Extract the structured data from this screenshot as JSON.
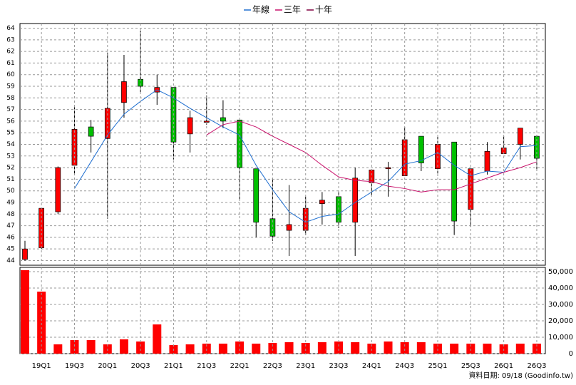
{
  "chart_data": [
    {
      "type": "candlestick",
      "open": [
        44.1,
        45.1,
        48.2,
        52.2,
        55.5,
        54.5,
        57.6,
        59.6,
        58.5,
        58.9,
        54.9,
        55.9,
        56.3,
        56.1,
        51.9,
        47.6,
        46.6,
        46.6,
        48.9,
        49.5,
        47.3,
        50.7,
        51.9,
        51.3,
        54.7,
        51.9,
        54.2,
        48.4,
        51.7,
        53.2,
        54.0,
        54.7
      ],
      "high": [
        45.7,
        48.5,
        52.1,
        57.2,
        56.1,
        61.9,
        61.7,
        63.8,
        60.0,
        58.9,
        56.9,
        58.2,
        57.8,
        56.1,
        51.9,
        51.1,
        50.5,
        49.5,
        49.9,
        50.0,
        52.0,
        51.8,
        52.5,
        55.5,
        54.7,
        54.8,
        54.2,
        51.9,
        54.2,
        54.7,
        55.4,
        54.8
      ],
      "low": [
        44.0,
        45.0,
        48.0,
        51.4,
        53.3,
        47.6,
        56.3,
        58.5,
        57.4,
        52.7,
        53.3,
        55.7,
        55.4,
        49.2,
        46.0,
        45.7,
        44.4,
        46.2,
        47.1,
        46.8,
        44.4,
        49.6,
        49.5,
        51.3,
        51.7,
        51.3,
        46.2,
        46.9,
        51.4,
        53.2,
        52.7,
        51.7
      ],
      "close": [
        45.0,
        48.5,
        52.0,
        55.3,
        54.7,
        57.1,
        59.4,
        59.0,
        58.9,
        54.2,
        56.3,
        56.0,
        56.0,
        52.0,
        47.3,
        46.1,
        47.1,
        48.5,
        49.2,
        47.3,
        51.1,
        51.8,
        52.0,
        54.4,
        52.4,
        54.0,
        47.4,
        51.9,
        53.4,
        53.7,
        55.4,
        52.8
      ],
      "up_color": "#ff0000",
      "down_color": "#00c000",
      "series": [
        {
          "name": "年線",
          "color": "#1f6fd0",
          "values": [
            null,
            null,
            null,
            50.2,
            52.5,
            54.8,
            56.6,
            57.7,
            58.7,
            58.0,
            57.1,
            56.3,
            55.5,
            54.8,
            52.2,
            50.1,
            48.2,
            47.3,
            47.8,
            48.0,
            49.0,
            49.9,
            50.8,
            52.3,
            52.6,
            53.3,
            52.2,
            51.3,
            51.7,
            51.6,
            53.8,
            53.9
          ]
        },
        {
          "name": "三年",
          "color": "#c8106a",
          "values": [
            null,
            null,
            null,
            null,
            null,
            null,
            null,
            null,
            null,
            null,
            null,
            54.8,
            55.7,
            56.0,
            55.5,
            54.7,
            54.0,
            53.3,
            52.2,
            51.2,
            50.9,
            50.8,
            50.4,
            50.2,
            49.9,
            50.1,
            50.1,
            50.6,
            51.1,
            51.6,
            52.0,
            52.5
          ]
        },
        {
          "name": "十年",
          "color": "#800040",
          "values": [
            null,
            null,
            null,
            null,
            null,
            null,
            null,
            null,
            null,
            null,
            null,
            null,
            null,
            null,
            null,
            null,
            null,
            null,
            null,
            null,
            null,
            null,
            null,
            null,
            null,
            null,
            null,
            null,
            null,
            null,
            null,
            null
          ]
        }
      ],
      "ylim": [
        43.6,
        64.4
      ],
      "yticks": [
        44,
        45,
        46,
        47,
        48,
        49,
        50,
        51,
        52,
        53,
        54,
        55,
        56,
        57,
        58,
        59,
        60,
        61,
        62,
        63,
        64
      ],
      "grid": true
    },
    {
      "type": "bar",
      "categories": [
        null,
        "19Q1",
        null,
        "19Q3",
        null,
        "20Q1",
        null,
        "20Q3",
        null,
        "21Q1",
        null,
        "21Q3",
        null,
        "22Q1",
        null,
        "22Q3",
        null,
        "23Q1",
        null,
        "23Q3",
        null,
        "24Q1",
        null,
        "24Q3",
        null,
        "25Q1",
        null,
        "25Q3",
        null,
        "26Q1",
        null,
        "26Q3"
      ],
      "values": [
        50900,
        37800,
        5650,
        8260,
        8260,
        5650,
        8700,
        7400,
        17800,
        5200,
        5650,
        6100,
        6100,
        7400,
        6100,
        6500,
        7000,
        6500,
        7000,
        7400,
        7000,
        6100,
        7400,
        7000,
        7000,
        6100,
        6100,
        6100,
        6100,
        5650,
        6100,
        6100
      ],
      "color": "#ff0000",
      "ylim": [
        0,
        52600
      ],
      "yticks": [
        0,
        {
          "value": 10000,
          "label": "10,000"
        },
        {
          "value": 20000,
          "label": "20,000"
        },
        {
          "value": 30000,
          "label": "30,000"
        },
        {
          "value": 40000,
          "label": "40,000"
        },
        {
          "value": 50000,
          "label": "50,000"
        }
      ],
      "grid": true
    }
  ],
  "footer": "資料日期: 09/18 (Goodinfo.tw)"
}
